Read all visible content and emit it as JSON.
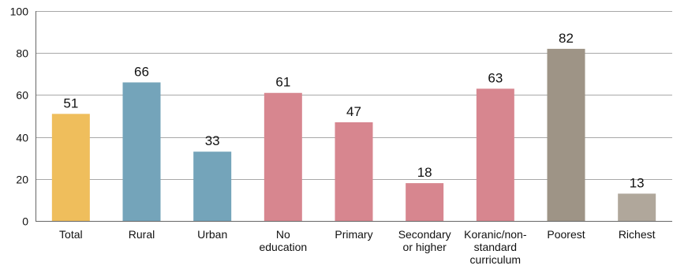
{
  "chart_data": {
    "type": "bar",
    "title": "",
    "xlabel": "",
    "ylabel": "",
    "ylim": [
      0,
      100
    ],
    "y_ticks": [
      0,
      20,
      40,
      60,
      80,
      100
    ],
    "grid": "horizontal",
    "categories": [
      {
        "lines": [
          "Total"
        ]
      },
      {
        "lines": [
          "Rural"
        ]
      },
      {
        "lines": [
          "Urban"
        ]
      },
      {
        "lines": [
          "No",
          "education"
        ]
      },
      {
        "lines": [
          "Primary"
        ]
      },
      {
        "lines": [
          "Secondary",
          "or higher"
        ]
      },
      {
        "lines": [
          "Koranic/non-",
          "standard",
          "curriculum"
        ]
      },
      {
        "lines": [
          "Poorest"
        ]
      },
      {
        "lines": [
          "Richest"
        ]
      }
    ],
    "values": [
      51,
      66,
      33,
      61,
      47,
      18,
      63,
      82,
      13
    ],
    "data_labels": [
      "51",
      "66",
      "33",
      "61",
      "47",
      "18",
      "63",
      "82",
      "13"
    ],
    "colors": [
      "#EFBE5C",
      "#74A4BA",
      "#74A4BA",
      "#D7868F",
      "#D7868F",
      "#D7868F",
      "#D7868F",
      "#9E9486",
      "#B0A79B"
    ]
  }
}
